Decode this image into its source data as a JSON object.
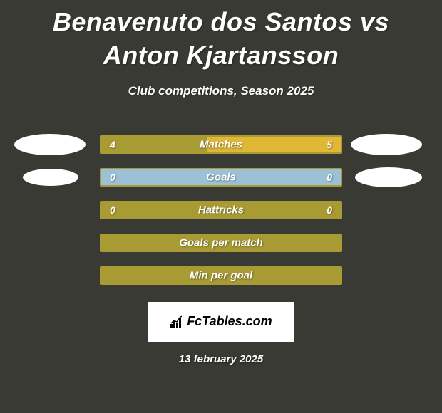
{
  "title": "Benavenuto dos Santos vs Anton Kjartansson",
  "subtitle": "Club competitions, Season 2025",
  "date": "13 february 2025",
  "logo_text": "FcTables.com",
  "colors": {
    "background": "#3a3a34",
    "bar_border": "#a99b33",
    "left_fill": "#a99b33",
    "right_fill": "#e1b836",
    "neutral_fill": "#a99b33",
    "photo_bg": "#ffffff",
    "text": "#ffffff"
  },
  "photos": {
    "left_row": 0,
    "right_row": 1
  },
  "rows": [
    {
      "label": "Matches",
      "left": "4",
      "right": "5",
      "left_val": 4,
      "right_val": 5,
      "has_values": true,
      "border_color": "#a99b33",
      "left_fill": "#a99b33",
      "right_fill": "#e1b836"
    },
    {
      "label": "Goals",
      "left": "0",
      "right": "0",
      "left_val": 0,
      "right_val": 0,
      "has_values": true,
      "border_color": "#a99b33",
      "left_fill": "#a99b33",
      "right_fill": "#e1b836",
      "zero_fill": "#9cc1d6"
    },
    {
      "label": "Hattricks",
      "left": "0",
      "right": "0",
      "left_val": 0,
      "right_val": 0,
      "has_values": true,
      "border_color": "#a99b33",
      "left_fill": "#a99b33",
      "right_fill": "#e1b836"
    },
    {
      "label": "Goals per match",
      "has_values": false,
      "border_color": "#a99b33",
      "fill": "#a99b33"
    },
    {
      "label": "Min per goal",
      "has_values": false,
      "border_color": "#a99b33",
      "fill": "#a99b33"
    }
  ]
}
